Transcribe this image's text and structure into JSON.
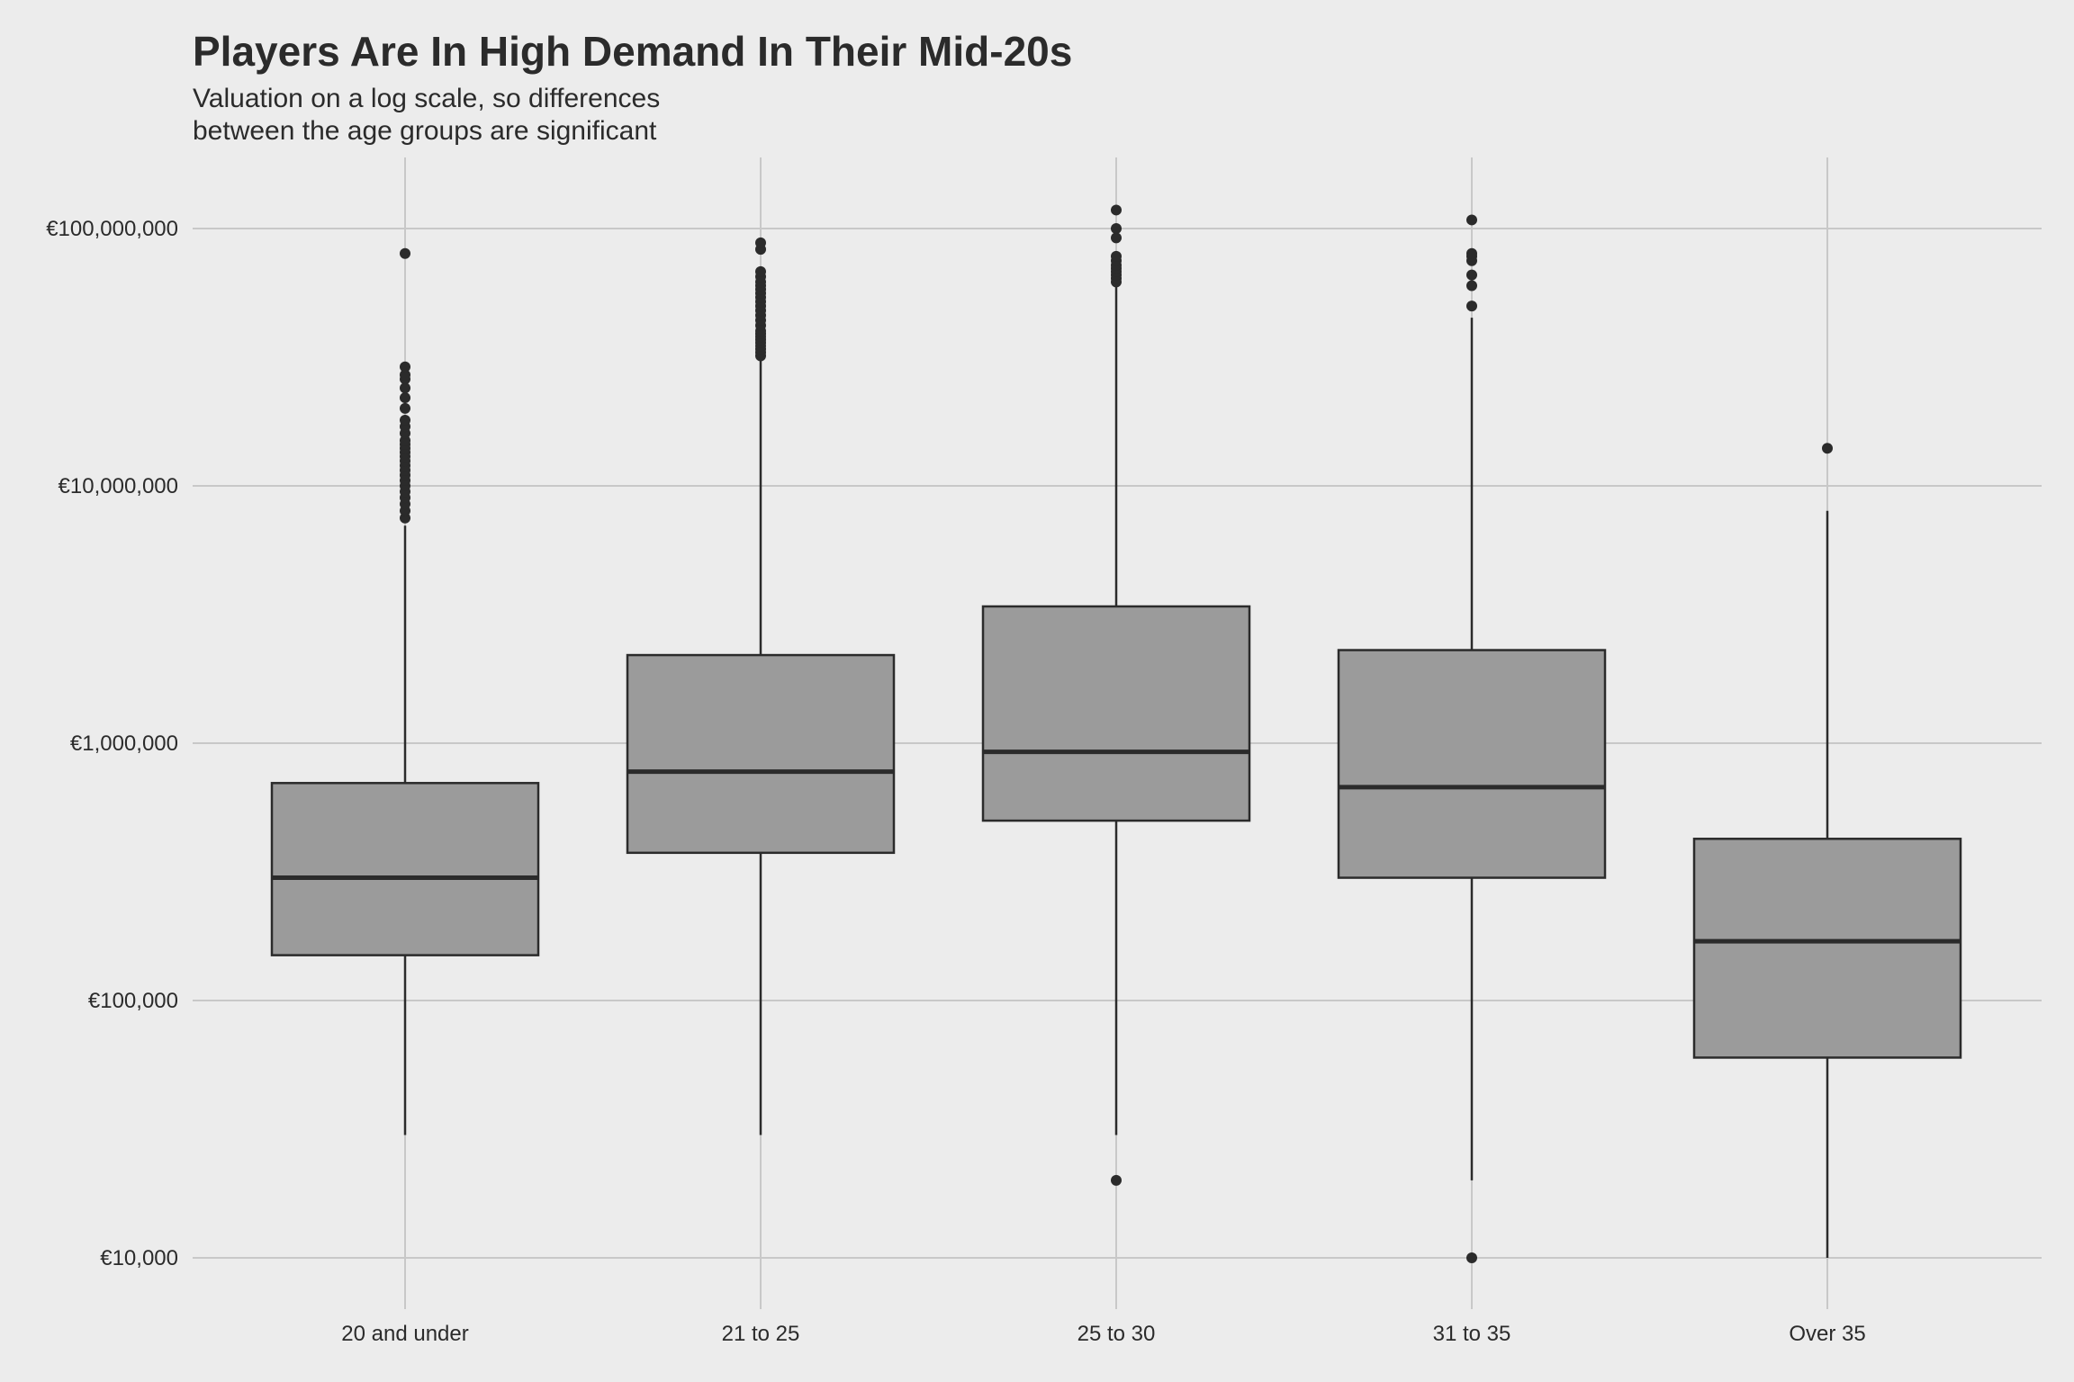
{
  "chart_data": {
    "type": "box",
    "title": "Players Are In High Demand In Their Mid-20s",
    "subtitle_lines": [
      "Valuation on a log scale, so differences",
      "between the age groups are significant"
    ],
    "xlabel": "",
    "ylabel": "",
    "y_scale": "log10",
    "ylim": [
      5000,
      180000000
    ],
    "y_ticks": [
      10000,
      100000,
      1000000,
      10000000,
      100000000
    ],
    "y_tick_labels": [
      "€10,000",
      "€100,000",
      "€1,000,000",
      "€10,000,000",
      "€100,000,000"
    ],
    "categories": [
      "20 and under",
      "21 to 25",
      "25 to 30",
      "31 to 35",
      "Over 35"
    ],
    "boxes": [
      {
        "category": "20 and under",
        "q1": 150000,
        "median": 300000,
        "q3": 700000,
        "whisker_low": 30000,
        "whisker_high": 7000000,
        "outliers": [
          7500000,
          8000000,
          8500000,
          9000000,
          9500000,
          10000000,
          10500000,
          11000000,
          11500000,
          12000000,
          12500000,
          13000000,
          13500000,
          14000000,
          14500000,
          15000000,
          16000000,
          17000000,
          18000000,
          20000000,
          22000000,
          24000000,
          26000000,
          27000000,
          29000000,
          80000000
        ]
      },
      {
        "category": "21 to 25",
        "q1": 375000,
        "median": 775000,
        "q3": 2200000,
        "whisker_low": 30000,
        "whisker_high": 31000000,
        "outliers": [
          32000000,
          33000000,
          34000000,
          35000000,
          36000000,
          37000000,
          38000000,
          39000000,
          40000000,
          42000000,
          44000000,
          46000000,
          48000000,
          50000000,
          52000000,
          54000000,
          56000000,
          58000000,
          60000000,
          62000000,
          65000000,
          68000000,
          83000000,
          88000000
        ]
      },
      {
        "category": "25 to 30",
        "q1": 500000,
        "median": 925000,
        "q3": 3400000,
        "whisker_low": 30000,
        "whisker_high": 61000000,
        "outliers": [
          20000,
          62000000,
          64000000,
          66000000,
          68000000,
          70000000,
          72000000,
          75000000,
          78000000,
          92000000,
          100000000,
          118000000
        ]
      },
      {
        "category": "31 to 35",
        "q1": 300000,
        "median": 675000,
        "q3": 2300000,
        "whisker_low": 20000,
        "whisker_high": 45000000,
        "outliers": [
          10000,
          50000000,
          60000000,
          66000000,
          75000000,
          78000000,
          80000000,
          108000000
        ]
      },
      {
        "category": "Over 35",
        "q1": 60000,
        "median": 170000,
        "q3": 425000,
        "whisker_low": 10000,
        "whisker_high": 8000000,
        "outliers": [
          14000000
        ]
      }
    ],
    "grid": true,
    "legend": "none",
    "colors": {
      "background": "#ececec",
      "grid": "#c8c8c8",
      "box_fill": "#9b9b9b",
      "box_stroke": "#2b2b2b",
      "text": "#2b2b2b"
    }
  }
}
